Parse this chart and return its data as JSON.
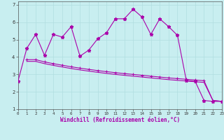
{
  "xlabel": "Windchill (Refroidissement éolien,°C)",
  "background_color": "#c8eef0",
  "grid_color": "#b0dde0",
  "line_color": "#aa00aa",
  "xlim": [
    0,
    23
  ],
  "ylim": [
    1,
    7.2
  ],
  "xticks": [
    0,
    1,
    2,
    3,
    4,
    5,
    6,
    7,
    8,
    9,
    10,
    11,
    12,
    13,
    14,
    15,
    16,
    17,
    18,
    19,
    20,
    21,
    22,
    23
  ],
  "yticks": [
    1,
    2,
    3,
    4,
    5,
    6,
    7
  ],
  "series1_x": [
    0,
    1,
    2,
    3,
    4,
    5,
    6,
    7,
    8,
    9,
    10,
    11,
    12,
    13,
    14,
    15,
    16,
    17,
    18,
    19,
    20,
    21,
    22,
    23
  ],
  "series1_y": [
    2.6,
    4.5,
    5.3,
    4.1,
    5.3,
    5.15,
    5.75,
    4.05,
    4.4,
    5.05,
    5.4,
    6.2,
    6.2,
    6.75,
    6.3,
    5.3,
    6.2,
    5.75,
    5.25,
    2.65,
    2.6,
    1.5,
    1.45,
    1.45
  ],
  "series2_x": [
    1,
    2,
    3,
    4,
    5,
    6,
    7,
    8,
    9,
    10,
    11,
    12,
    13,
    14,
    15,
    16,
    17,
    18,
    19,
    20,
    21,
    22,
    23
  ],
  "series2_y": [
    3.85,
    3.85,
    3.72,
    3.62,
    3.53,
    3.44,
    3.36,
    3.29,
    3.22,
    3.16,
    3.1,
    3.05,
    3.0,
    2.95,
    2.9,
    2.85,
    2.8,
    2.76,
    2.72,
    2.68,
    2.64,
    1.5,
    1.45
  ],
  "series3_x": [
    1,
    2,
    3,
    4,
    5,
    6,
    7,
    8,
    9,
    10,
    11,
    12,
    13,
    14,
    15,
    16,
    17,
    18,
    19,
    20,
    21,
    22,
    23
  ],
  "series3_y": [
    3.75,
    3.75,
    3.62,
    3.52,
    3.43,
    3.34,
    3.26,
    3.19,
    3.12,
    3.06,
    3.0,
    2.95,
    2.9,
    2.85,
    2.8,
    2.75,
    2.7,
    2.66,
    2.62,
    2.58,
    2.54,
    1.5,
    1.45
  ]
}
